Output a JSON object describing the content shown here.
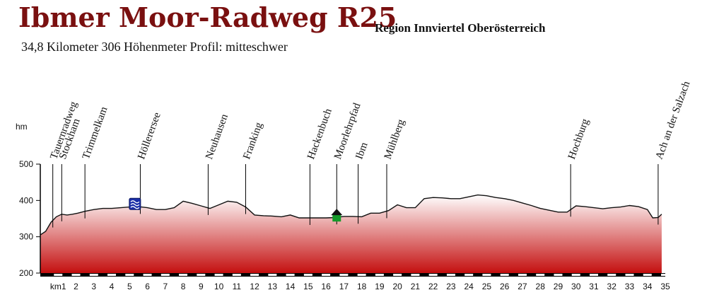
{
  "header": {
    "title": "Ibmer Moor-Radweg R25",
    "region": "Region Innviertel Oberösterreich",
    "summary": "34,8 Kilometer  306 Höhenmeter  Profil: mitteschwer"
  },
  "chart_data": {
    "type": "area",
    "ylabel": "hm",
    "xlabel_prefix": "km",
    "ylim": [
      200,
      500
    ],
    "xlim": [
      0,
      35
    ],
    "y_ticks": [
      200,
      300,
      400,
      500
    ],
    "x_ticks": [
      1,
      2,
      3,
      4,
      5,
      6,
      7,
      8,
      9,
      10,
      11,
      12,
      13,
      14,
      15,
      16,
      17,
      18,
      19,
      20,
      21,
      22,
      23,
      24,
      25,
      26,
      27,
      28,
      29,
      30,
      31,
      32,
      33,
      34,
      35
    ],
    "colors": {
      "fill_top": "#ffffff",
      "fill_bottom": "#c40f0f",
      "line": "#111111",
      "axis": "#000000"
    },
    "series": [
      {
        "x": [
          0,
          0.3,
          0.6,
          0.9,
          1.2,
          1.5,
          1.8,
          2.1,
          2.5,
          3.0,
          3.5,
          4.0,
          4.5,
          5.0,
          5.5,
          6.0,
          6.5,
          7.0,
          7.5,
          8.0,
          8.5,
          9.0,
          9.5,
          10.0,
          10.5,
          11.0,
          11.5,
          12.0,
          12.5,
          13.0,
          13.5,
          14.0,
          14.5,
          15.0,
          15.5,
          16.0,
          16.5,
          17.0,
          17.5,
          18.0,
          18.5,
          19.0,
          19.5,
          20.0,
          20.5,
          21.0,
          21.5,
          22.0,
          22.5,
          23.0,
          23.5,
          24.0,
          24.5,
          25.0,
          25.5,
          26.0,
          26.5,
          27.0,
          27.5,
          28.0,
          28.5,
          29.0,
          29.5,
          30.0,
          30.5,
          31.0,
          31.5,
          32.0,
          32.5,
          33.0,
          33.5,
          34.0,
          34.3,
          34.6,
          34.8
        ],
        "y": [
          305,
          315,
          340,
          355,
          362,
          360,
          362,
          365,
          370,
          375,
          378,
          378,
          380,
          382,
          383,
          380,
          375,
          375,
          380,
          398,
          392,
          385,
          378,
          388,
          398,
          395,
          382,
          360,
          358,
          357,
          355,
          360,
          352,
          352,
          352,
          352,
          353,
          356,
          356,
          355,
          365,
          365,
          372,
          388,
          380,
          380,
          405,
          408,
          407,
          405,
          405,
          410,
          415,
          413,
          408,
          405,
          400,
          393,
          386,
          378,
          373,
          368,
          368,
          385,
          383,
          380,
          377,
          380,
          382,
          386,
          383,
          375,
          352,
          353,
          362
        ]
      }
    ],
    "waypoints": [
      {
        "name": "Tauernradweg",
        "km": 0.7
      },
      {
        "name": "Stockham",
        "km": 1.2
      },
      {
        "name": "Trimmelkam",
        "km": 2.5
      },
      {
        "name": "Höllerersee",
        "km": 5.6
      },
      {
        "name": "Neuhausen",
        "km": 9.4
      },
      {
        "name": "Franking",
        "km": 11.5
      },
      {
        "name": "Hackenbuch",
        "km": 15.1
      },
      {
        "name": "Moorlehrpfad",
        "km": 16.6
      },
      {
        "name": "Ibm",
        "km": 17.8
      },
      {
        "name": "Mühlberg",
        "km": 19.4
      },
      {
        "name": "Hochburg",
        "km": 29.7
      },
      {
        "name": "Ach an der Salzach",
        "km": 34.6
      }
    ],
    "symbols": [
      {
        "kind": "lake-icon",
        "km": 5.3,
        "color": "#1b2fa8"
      },
      {
        "kind": "moor-trail-icon",
        "km": 16.6,
        "color": "#159a2a"
      }
    ]
  }
}
